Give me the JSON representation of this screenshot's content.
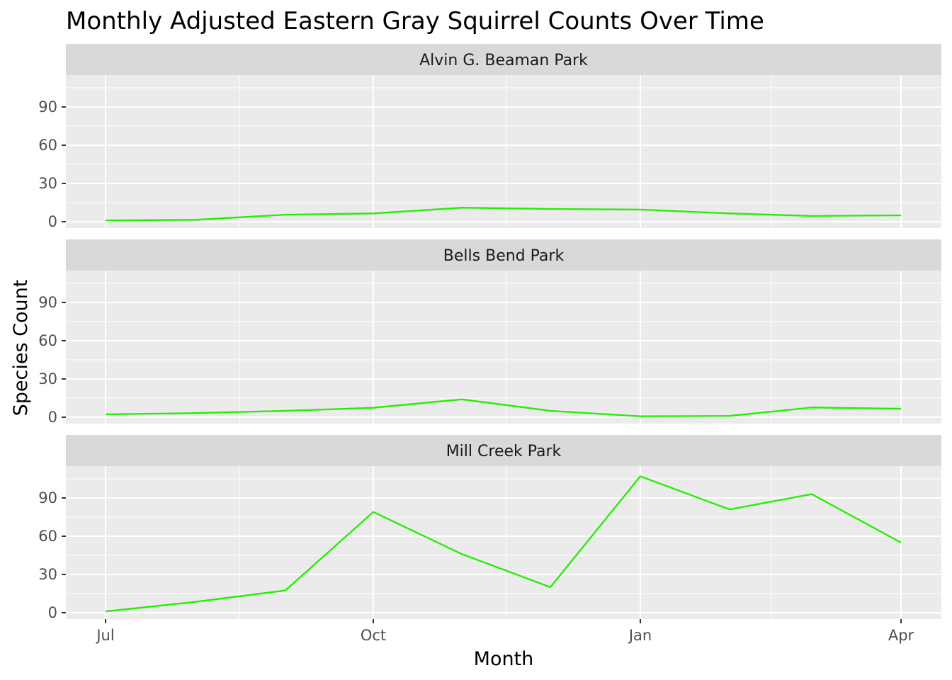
{
  "chart_data": {
    "type": "line",
    "title": "Monthly Adjusted Eastern Gray Squirrel Counts Over Time",
    "xlabel": "Month",
    "ylabel": "Species Count",
    "x_ticks": [
      "Jul",
      "Oct",
      "Jan",
      "Apr"
    ],
    "y_ticks": [
      0,
      30,
      60,
      90
    ],
    "ylim": [
      -5,
      115
    ],
    "grid": true,
    "line_color": "#22ee00",
    "panel_background": "#ebebeb",
    "strip_background": "#d9d9d9",
    "x": [
      "Jul",
      "Aug",
      "Sep",
      "Oct",
      "Nov",
      "Dec",
      "Jan",
      "Feb",
      "Mar",
      "Apr"
    ],
    "facets": [
      {
        "name": "Alvin G. Beaman Park",
        "values": [
          1,
          1.5,
          5.5,
          6.5,
          11,
          10,
          9.5,
          6.5,
          4.5,
          5
        ]
      },
      {
        "name": "Bells Bend Park",
        "values": [
          2.3,
          3.2,
          5,
          7.4,
          14,
          5,
          0.7,
          1,
          7.6,
          6.6
        ]
      },
      {
        "name": "Mill Creek Park",
        "values": [
          1,
          8.5,
          17.5,
          79,
          46,
          20,
          107,
          81,
          93,
          55
        ]
      }
    ]
  }
}
